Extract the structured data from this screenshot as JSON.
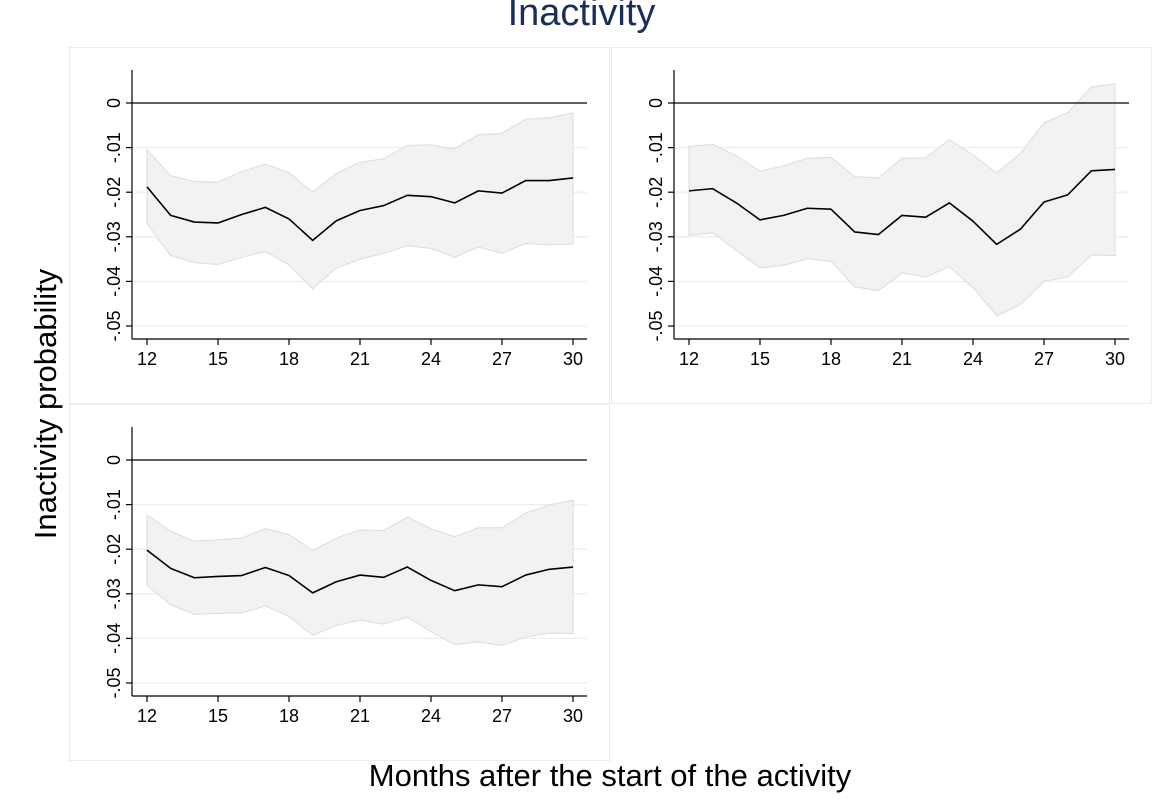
{
  "figure": {
    "title": "Inactivity",
    "ylabel": "Inactivity probability",
    "xlabel": "Months after the start of the activity",
    "colors": {
      "title": "#1a2e5a",
      "line": "#000000",
      "band_fill": "#f2f2f2",
      "band_edge": "#dcdcdc",
      "grid": "#eaf0f0",
      "panel_border": "#e6eeee"
    }
  },
  "chart_data": [
    {
      "type": "line",
      "x": [
        12,
        13,
        14,
        15,
        16,
        17,
        18,
        19,
        20,
        21,
        22,
        23,
        24,
        25,
        26,
        27,
        28,
        29,
        30
      ],
      "xticks": [
        12,
        15,
        18,
        21,
        24,
        27,
        30
      ],
      "yticks": [
        0,
        -0.01,
        -0.02,
        -0.03,
        -0.04,
        -0.05
      ],
      "ytick_labels": [
        "0",
        "-.01",
        "-.02",
        "-.03",
        "-.04",
        "-.05"
      ],
      "xlim": [
        12,
        30
      ],
      "ylim": [
        -0.05,
        0
      ],
      "reference_line": 0,
      "grid": true,
      "series": [
        {
          "values": [
            -0.0188,
            -0.0252,
            -0.0267,
            -0.0269,
            -0.025,
            -0.0234,
            -0.026,
            -0.0308,
            -0.0264,
            -0.0241,
            -0.023,
            -0.0207,
            -0.021,
            -0.0224,
            -0.0197,
            -0.0202,
            -0.0174,
            -0.0174,
            -0.0168
          ]
        }
      ],
      "ci_upper": [
        -0.0105,
        -0.0163,
        -0.0176,
        -0.0177,
        -0.0154,
        -0.0137,
        -0.0156,
        -0.02,
        -0.0158,
        -0.0133,
        -0.0125,
        -0.0095,
        -0.0094,
        -0.0103,
        -0.0071,
        -0.0068,
        -0.0036,
        -0.0033,
        -0.0022
      ],
      "ci_lower": [
        -0.0271,
        -0.0342,
        -0.0358,
        -0.0362,
        -0.0346,
        -0.0333,
        -0.0363,
        -0.0416,
        -0.037,
        -0.035,
        -0.0337,
        -0.032,
        -0.0326,
        -0.0346,
        -0.0323,
        -0.0337,
        -0.0315,
        -0.0318,
        -0.0316
      ]
    },
    {
      "type": "line",
      "x": [
        12,
        13,
        14,
        15,
        16,
        17,
        18,
        19,
        20,
        21,
        22,
        23,
        24,
        25,
        26,
        27,
        28,
        29,
        30
      ],
      "xticks": [
        12,
        15,
        18,
        21,
        24,
        27,
        30
      ],
      "yticks": [
        0,
        -0.01,
        -0.02,
        -0.03,
        -0.04,
        -0.05
      ],
      "ytick_labels": [
        "0",
        "-.01",
        "-.02",
        "-.03",
        "-.04",
        "-.05"
      ],
      "xlim": [
        12,
        30
      ],
      "ylim": [
        -0.05,
        0
      ],
      "reference_line": 0,
      "grid": true,
      "series": [
        {
          "values": [
            -0.0197,
            -0.0192,
            -0.0224,
            -0.0262,
            -0.0252,
            -0.0236,
            -0.0238,
            -0.0289,
            -0.0295,
            -0.0252,
            -0.0256,
            -0.0224,
            -0.0265,
            -0.0317,
            -0.0283,
            -0.0222,
            -0.0206,
            -0.0152,
            -0.0149
          ]
        }
      ],
      "ci_upper": [
        -0.0097,
        -0.0093,
        -0.0118,
        -0.0153,
        -0.0141,
        -0.0124,
        -0.0122,
        -0.0165,
        -0.0168,
        -0.0124,
        -0.0123,
        -0.0082,
        -0.0116,
        -0.0157,
        -0.0113,
        -0.0044,
        -0.0022,
        0.0036,
        0.0043
      ],
      "ci_lower": [
        -0.0297,
        -0.0291,
        -0.0331,
        -0.037,
        -0.0364,
        -0.0349,
        -0.0355,
        -0.0412,
        -0.0421,
        -0.0381,
        -0.039,
        -0.0367,
        -0.0414,
        -0.0477,
        -0.0452,
        -0.04,
        -0.039,
        -0.0341,
        -0.0342
      ]
    },
    {
      "type": "line",
      "x": [
        12,
        13,
        14,
        15,
        16,
        17,
        18,
        19,
        20,
        21,
        22,
        23,
        24,
        25,
        26,
        27,
        28,
        29,
        30
      ],
      "xticks": [
        12,
        15,
        18,
        21,
        24,
        27,
        30
      ],
      "yticks": [
        0,
        -0.01,
        -0.02,
        -0.03,
        -0.04,
        -0.05
      ],
      "ytick_labels": [
        "0",
        "-.01",
        "-.02",
        "-.03",
        "-.04",
        "-.05"
      ],
      "xlim": [
        12,
        30
      ],
      "ylim": [
        -0.05,
        0
      ],
      "reference_line": 0,
      "grid": true,
      "series": [
        {
          "values": [
            -0.0202,
            -0.0243,
            -0.0264,
            -0.0261,
            -0.0259,
            -0.0241,
            -0.0259,
            -0.0298,
            -0.0273,
            -0.0258,
            -0.0263,
            -0.024,
            -0.027,
            -0.0293,
            -0.028,
            -0.0284,
            -0.0258,
            -0.0245,
            -0.024
          ]
        }
      ],
      "ci_upper": [
        -0.0123,
        -0.016,
        -0.0182,
        -0.0179,
        -0.0175,
        -0.0154,
        -0.0167,
        -0.0203,
        -0.0175,
        -0.0157,
        -0.0158,
        -0.0128,
        -0.0154,
        -0.0172,
        -0.0152,
        -0.0152,
        -0.0119,
        -0.0101,
        -0.009
      ],
      "ci_lower": [
        -0.0281,
        -0.0325,
        -0.0346,
        -0.0344,
        -0.0343,
        -0.0327,
        -0.0351,
        -0.0393,
        -0.0371,
        -0.0359,
        -0.0368,
        -0.0352,
        -0.0385,
        -0.0414,
        -0.0408,
        -0.0416,
        -0.0397,
        -0.0388,
        -0.0389
      ]
    }
  ]
}
